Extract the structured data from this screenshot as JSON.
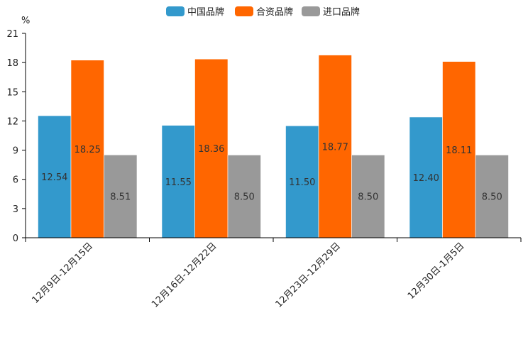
{
  "chart_data": {
    "type": "bar",
    "title": "",
    "xlabel": "",
    "ylabel": "%",
    "ylim": [
      0,
      21
    ],
    "yticks": [
      0,
      3,
      6,
      9,
      12,
      15,
      18,
      21
    ],
    "grid": false,
    "legend_position": "top-center",
    "categories": [
      "12月9日-12月15日",
      "12月16日-12月22日",
      "12月23日-12月29日",
      "12月30日-1月5日"
    ],
    "series": [
      {
        "name": "中国品牌",
        "color": "#3399cc",
        "values": [
          12.54,
          11.55,
          11.5,
          12.4
        ],
        "labels": [
          "12.54",
          "11.55",
          "11.50",
          "12.40"
        ]
      },
      {
        "name": "合资品牌",
        "color": "#ff6600",
        "values": [
          18.25,
          18.36,
          18.77,
          18.11
        ],
        "labels": [
          "18.25",
          "18.36",
          "18.77",
          "18.11"
        ]
      },
      {
        "name": "进口品牌",
        "color": "#999999",
        "values": [
          8.51,
          8.5,
          8.5,
          8.5
        ],
        "labels": [
          "8.51",
          "8.50",
          "8.50",
          "8.50"
        ]
      }
    ]
  }
}
